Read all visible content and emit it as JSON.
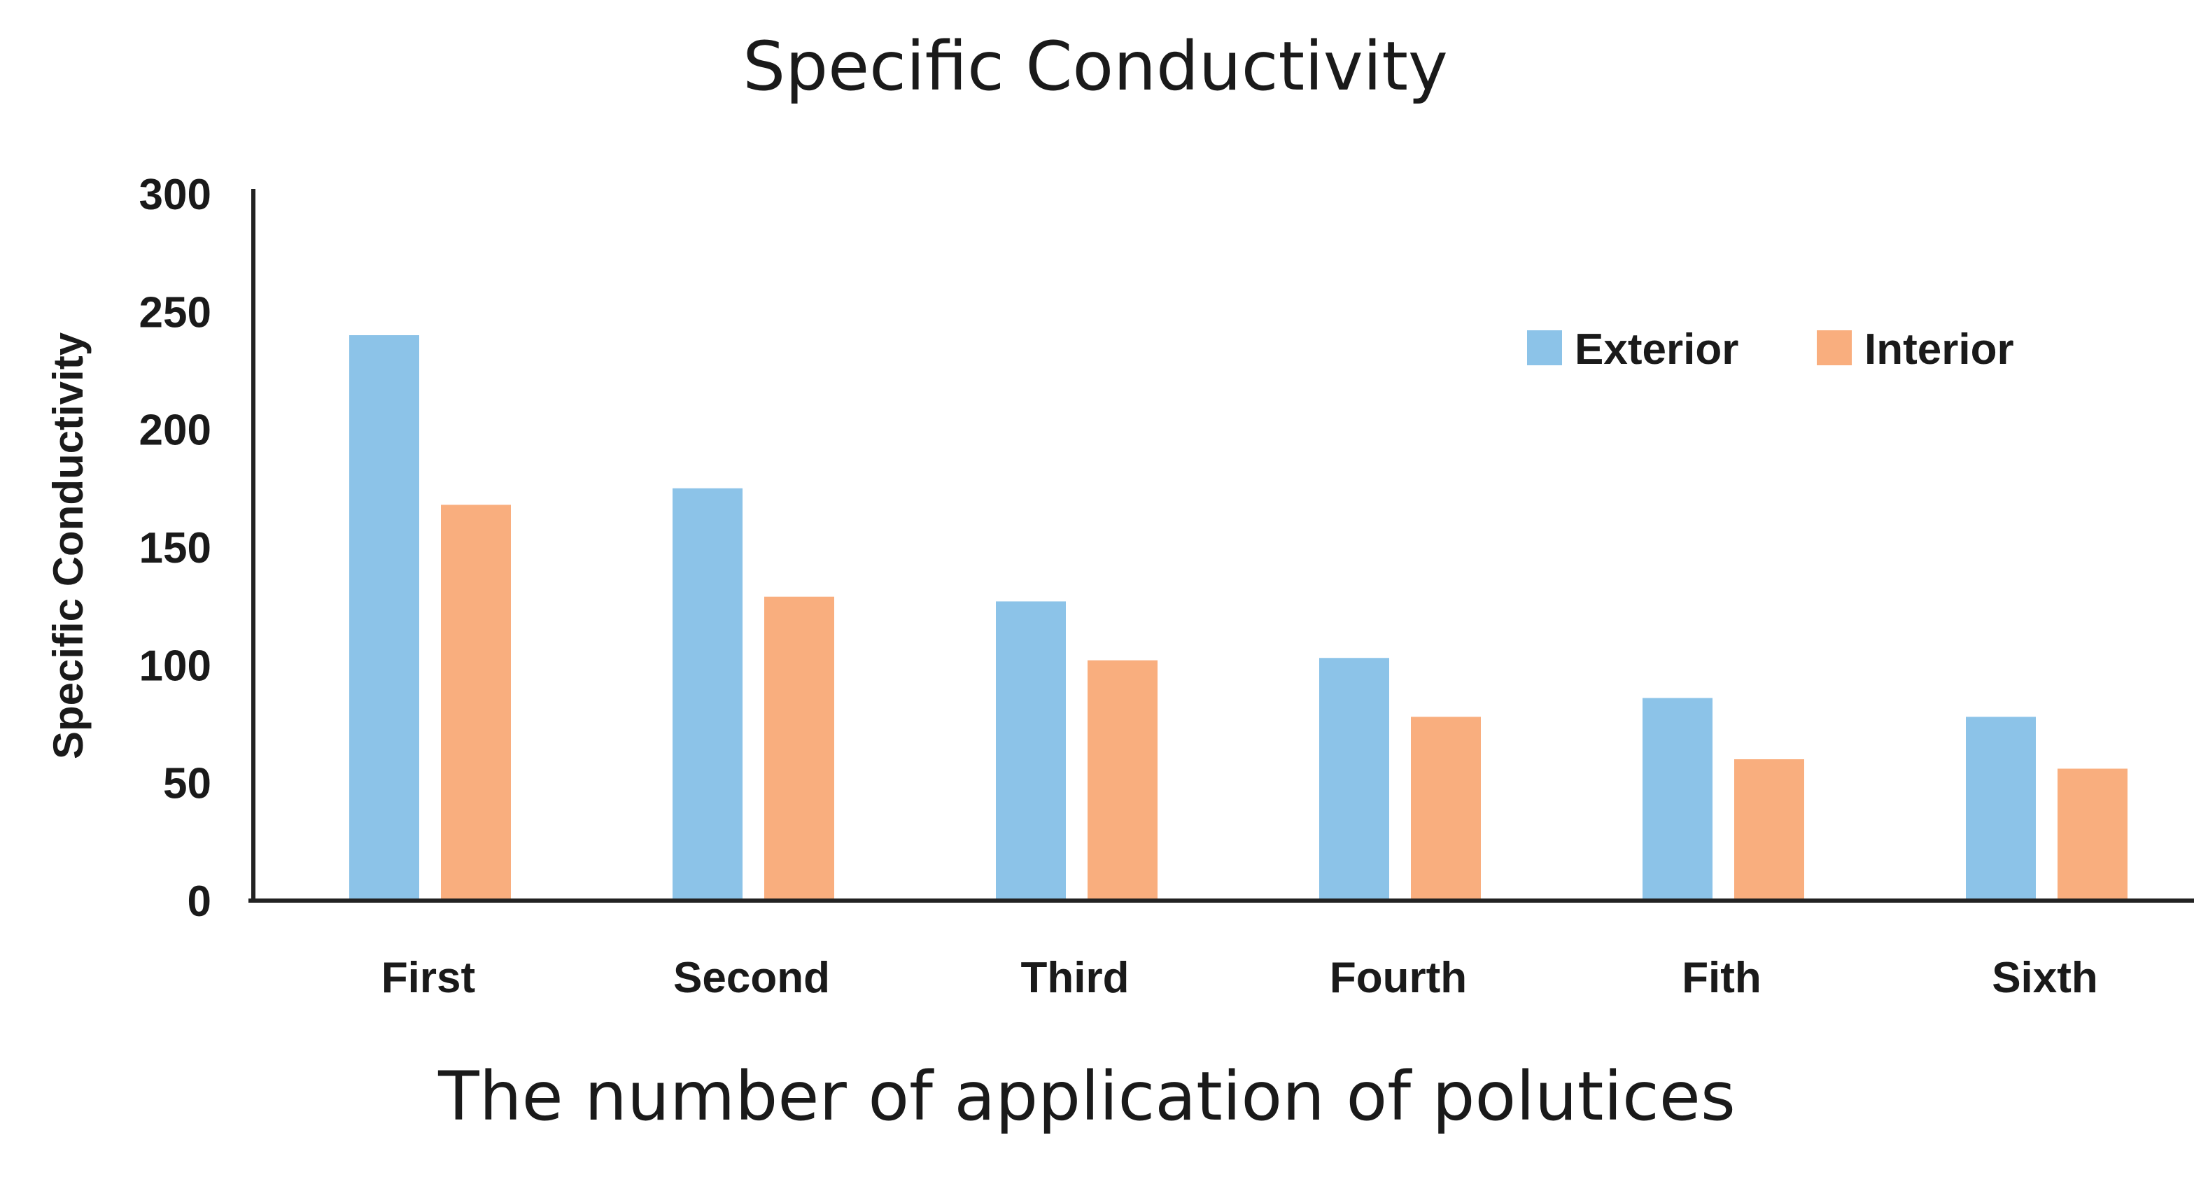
{
  "chart_data": {
    "type": "bar",
    "title": "Specific Conductivity",
    "xlabel": "The number of application of polutices",
    "ylabel": "Specific Conductivity",
    "categories": [
      "First",
      "Second",
      "Third",
      "Fourth",
      "Fith",
      "Sixth"
    ],
    "series": [
      {
        "name": "Exterior",
        "color": "#8cc3e8",
        "values": [
          240,
          175,
          127,
          103,
          86,
          78
        ]
      },
      {
        "name": "Interior",
        "color": "#f9ae7e",
        "values": [
          168,
          129,
          102,
          78,
          60,
          56
        ]
      }
    ],
    "ylim": [
      0,
      300
    ],
    "yticks": [
      0,
      50,
      100,
      150,
      200,
      250,
      300
    ],
    "grid": false,
    "legend_position": "top-right"
  }
}
